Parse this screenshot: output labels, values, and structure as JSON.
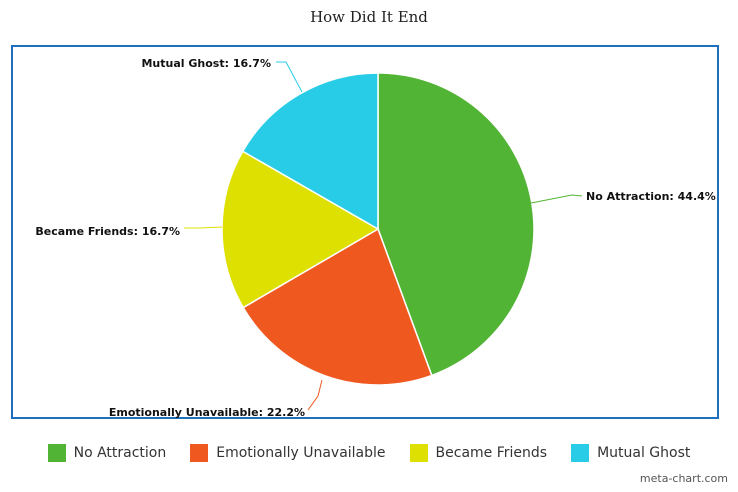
{
  "credit": "meta-chart.com",
  "chart_data": {
    "type": "pie",
    "title": "How Did It End",
    "slices": [
      {
        "label": "No Attraction",
        "value": 44.4,
        "display": "No Attraction: 44.4%",
        "color": "#52b435"
      },
      {
        "label": "Emotionally Unavailable",
        "value": 22.2,
        "display": "Emotionally Unavailable: 22.2%",
        "color": "#ef581e"
      },
      {
        "label": "Became Friends",
        "value": 16.7,
        "display": "Became Friends: 16.7%",
        "color": "#dde000"
      },
      {
        "label": "Mutual Ghost",
        "value": 16.7,
        "display": "Mutual Ghost: 16.7%",
        "color": "#28cce6"
      }
    ],
    "legend_position": "bottom"
  }
}
